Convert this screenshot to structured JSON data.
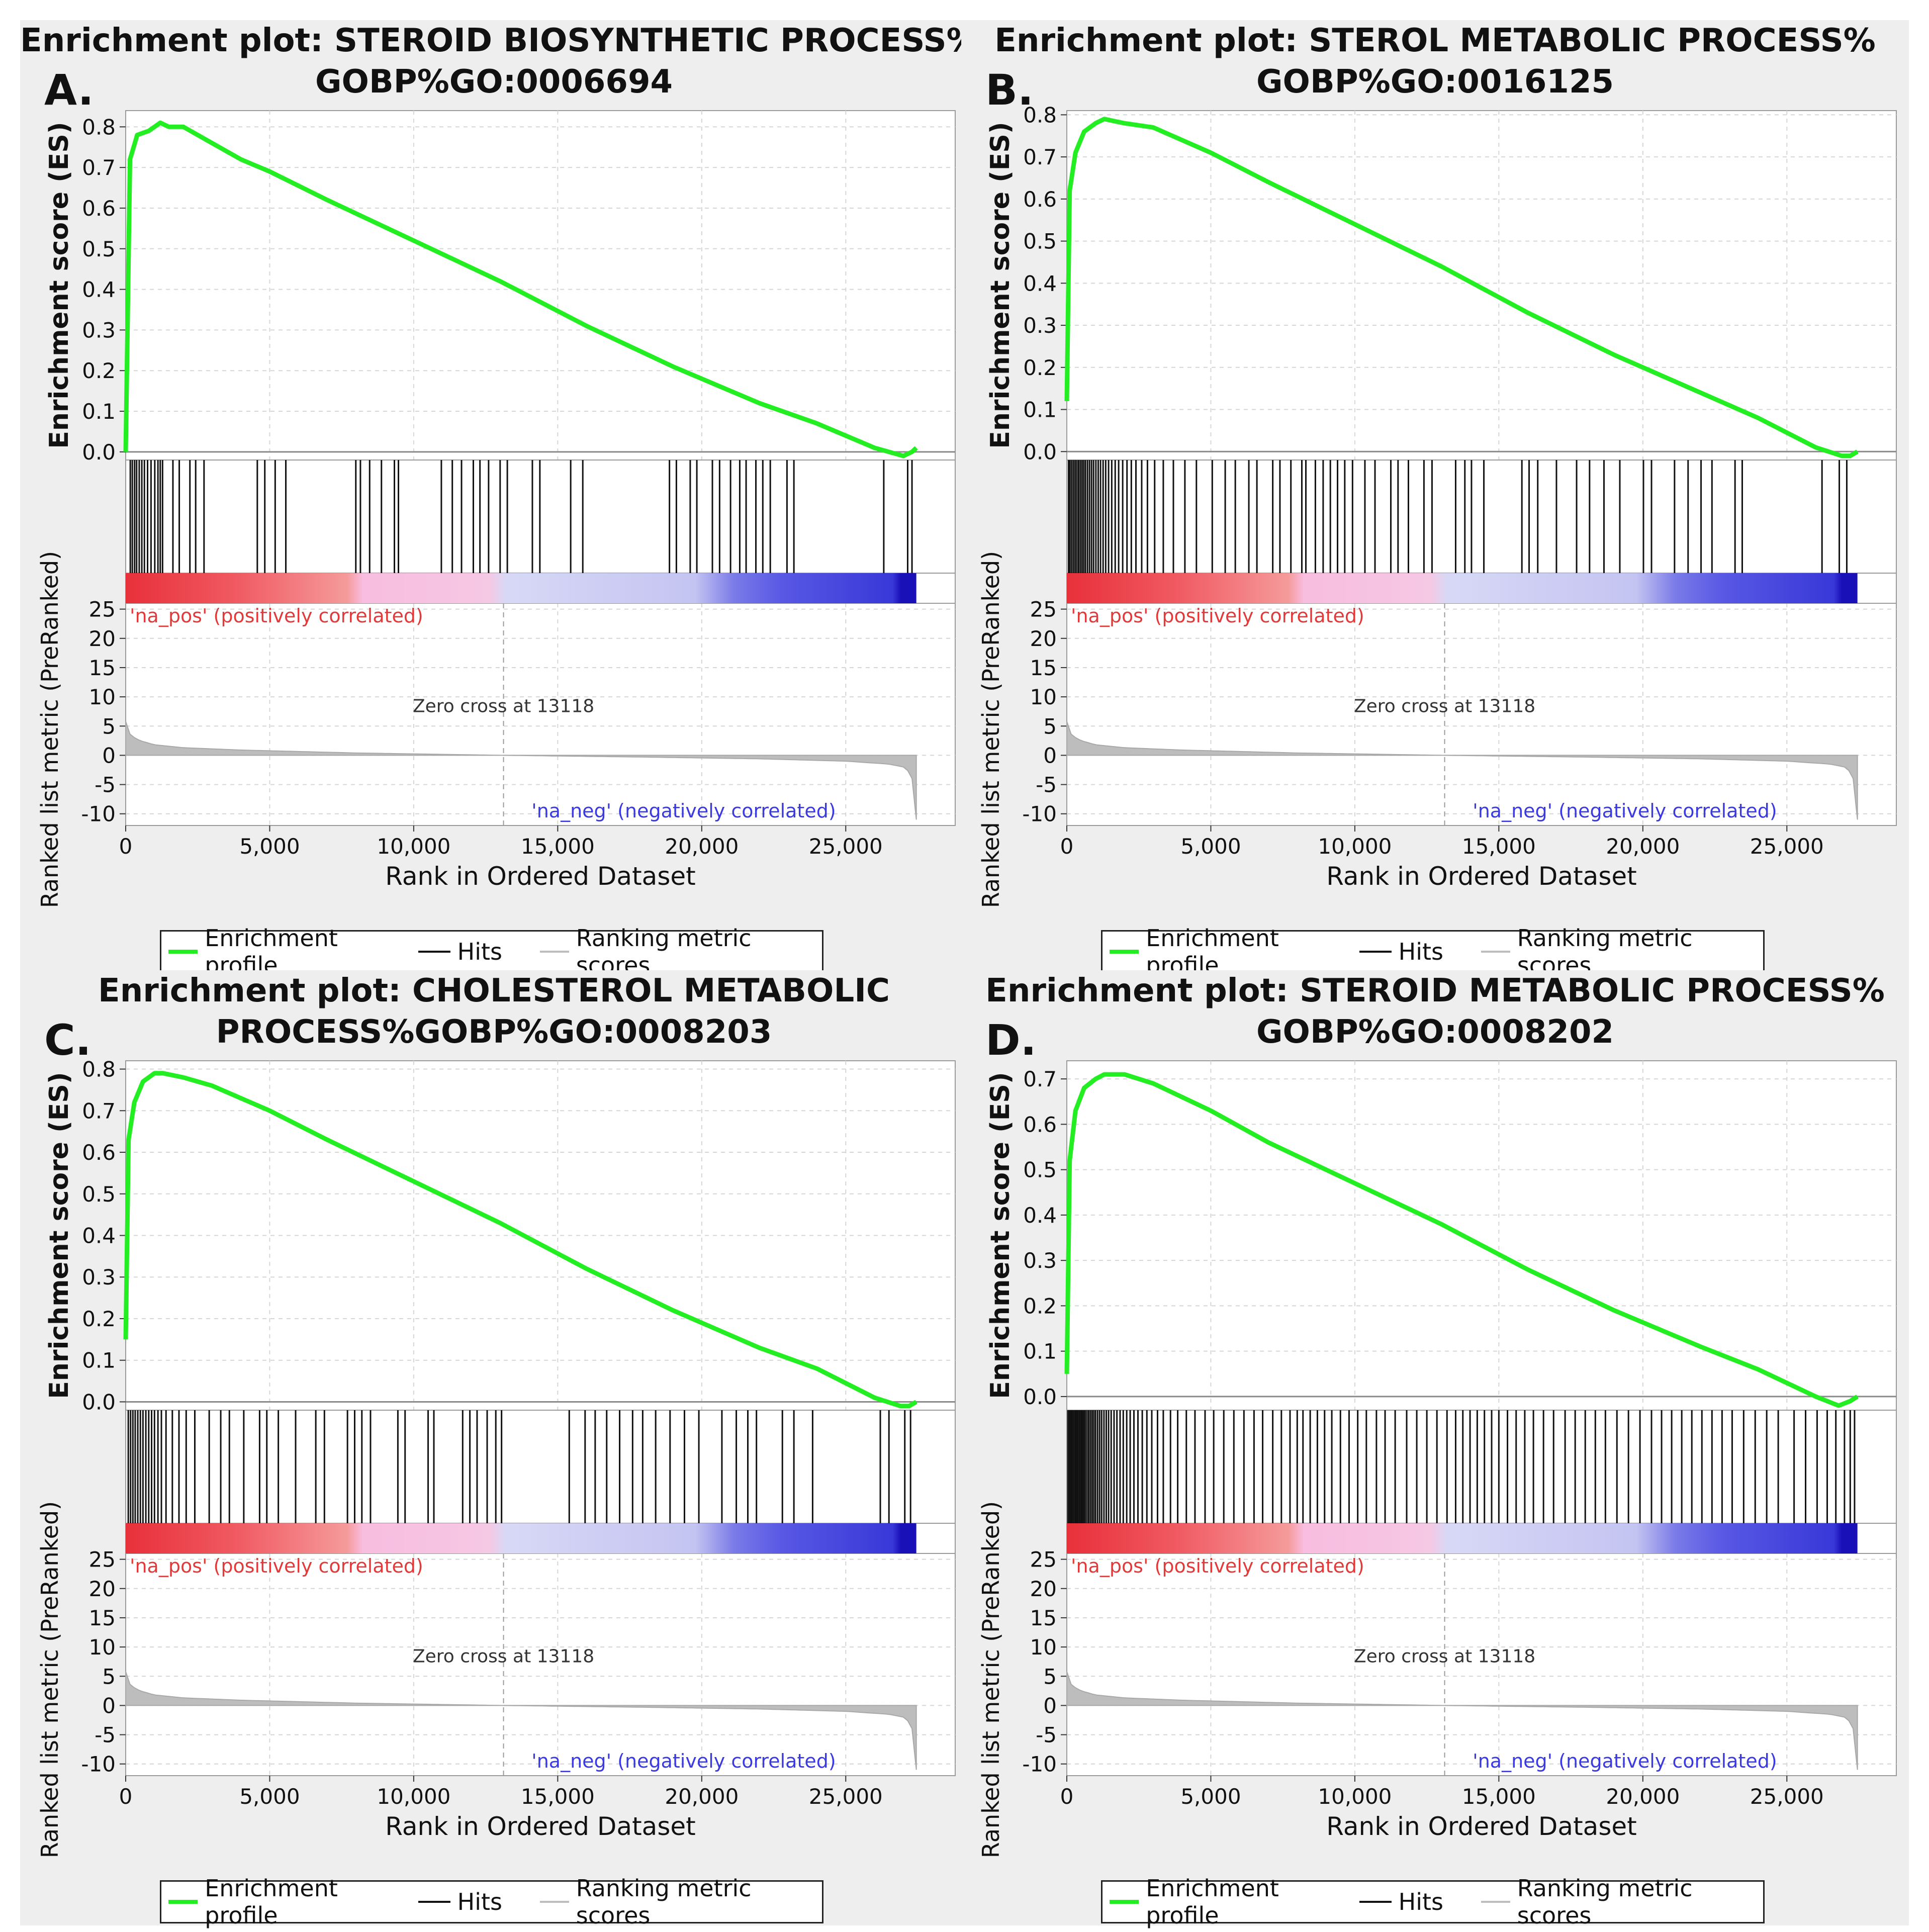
{
  "legend": {
    "profile": "Enrichment profile",
    "hits": "Hits",
    "ranking": "Ranking metric scores"
  },
  "colors": {
    "profile": "#22ee22",
    "hits": "#111111",
    "ranking": "#bdbdbd",
    "pos_label": "#e03a3a",
    "neg_label": "#3a3ae0"
  },
  "chart_data": [
    {
      "type": "line",
      "letter": "A.",
      "title_line1": "Enrichment plot: STEROID BIOSYNTHETIC PROCESS%",
      "title_line2": "GOBP%GO:0006694",
      "ylabel": "Enrichment score (ES)",
      "ylabel2": "Ranked list metric (PreRanked)",
      "xlabel": "Rank in Ordered Dataset",
      "ylim": [
        -0.02,
        0.84
      ],
      "yticks": [
        "0.8",
        "0.7",
        "0.6",
        "0.5",
        "0.4",
        "0.3",
        "0.2",
        "0.1",
        "0.0"
      ],
      "ytick_values": [
        0.8,
        0.7,
        0.6,
        0.5,
        0.4,
        0.3,
        0.2,
        0.1,
        0.0
      ],
      "xticks": [
        "0",
        "5,000",
        "10,000",
        "15,000",
        "20,000",
        "25,000"
      ],
      "xtick_values": [
        0,
        5000,
        10000,
        15000,
        20000,
        25000
      ],
      "xlim": [
        0,
        28800
      ],
      "metric_ticks": [
        "25",
        "20",
        "15",
        "10",
        "5",
        "0",
        "-5",
        "-10"
      ],
      "metric_tick_values": [
        25,
        20,
        15,
        10,
        5,
        0,
        -5,
        -10
      ],
      "metric_ylim": [
        -12,
        26
      ],
      "es_x": [
        0,
        150,
        400,
        800,
        1200,
        1500,
        2000,
        3000,
        4000,
        5000,
        7000,
        10000,
        13000,
        16000,
        19000,
        22000,
        24000,
        26000,
        27000,
        27300,
        27450
      ],
      "es_y": [
        0.0,
        0.72,
        0.78,
        0.79,
        0.81,
        0.8,
        0.8,
        0.76,
        0.72,
        0.69,
        0.62,
        0.52,
        0.42,
        0.31,
        0.21,
        0.12,
        0.07,
        0.01,
        -0.01,
        0.0,
        0.01
      ],
      "hits": [
        160,
        230,
        310,
        380,
        470,
        560,
        650,
        760,
        880,
        1010,
        1120,
        1200,
        1280,
        1640,
        1860,
        2230,
        2430,
        2720,
        4570,
        4830,
        5190,
        5560,
        7990,
        8150,
        8470,
        8880,
        9330,
        9470,
        10960,
        11340,
        11660,
        12070,
        12300,
        12600,
        13000,
        13250,
        14120,
        14380,
        15450,
        15870,
        18880,
        19120,
        19600,
        19830,
        20370,
        20620,
        21000,
        21320,
        21540,
        21880,
        22120,
        22380,
        22960,
        23200,
        26320,
        27150,
        27300
      ],
      "zero_cross_x": 13118,
      "zero_cross_label": "Zero cross at 13118",
      "pos_label": "'na_pos' (positively correlated)",
      "neg_label": "'na_neg' (negatively correlated)",
      "series_x_max": 27450,
      "metric_x": [
        0,
        60,
        200,
        500,
        1000,
        2000,
        4000,
        8000,
        13118,
        18000,
        22000,
        25000,
        26500,
        27000,
        27250,
        27380,
        27450
      ],
      "metric_y": [
        5.8,
        4.2,
        3.3,
        2.5,
        1.8,
        1.3,
        0.9,
        0.4,
        0.0,
        -0.3,
        -0.6,
        -1.0,
        -1.5,
        -2.0,
        -3.0,
        -5.5,
        -11.0
      ]
    },
    {
      "type": "line",
      "letter": "B.",
      "title_line1": "Enrichment plot: STEROL METABOLIC PROCESS%",
      "title_line2": "GOBP%GO:0016125",
      "ylabel": "Enrichment score (ES)",
      "ylabel2": "Ranked list metric (PreRanked)",
      "xlabel": "Rank in Ordered Dataset",
      "ylim": [
        -0.02,
        0.81
      ],
      "yticks": [
        "0.8",
        "0.7",
        "0.6",
        "0.5",
        "0.4",
        "0.3",
        "0.2",
        "0.1",
        "0.0"
      ],
      "ytick_values": [
        0.8,
        0.7,
        0.6,
        0.5,
        0.4,
        0.3,
        0.2,
        0.1,
        0.0
      ],
      "xticks": [
        "0",
        "5,000",
        "10,000",
        "15,000",
        "20,000",
        "25,000"
      ],
      "xtick_values": [
        0,
        5000,
        10000,
        15000,
        20000,
        25000
      ],
      "xlim": [
        0,
        28800
      ],
      "metric_ticks": [
        "25",
        "20",
        "15",
        "10",
        "5",
        "0",
        "-5",
        "-10"
      ],
      "metric_tick_values": [
        25,
        20,
        15,
        10,
        5,
        0,
        -5,
        -10
      ],
      "metric_ylim": [
        -12,
        26
      ],
      "es_x": [
        0,
        100,
        300,
        600,
        1000,
        1300,
        2000,
        3000,
        4000,
        5000,
        7000,
        10000,
        13000,
        16000,
        19000,
        22000,
        24000,
        26000,
        26900,
        27200,
        27450
      ],
      "es_y": [
        0.12,
        0.62,
        0.71,
        0.76,
        0.78,
        0.79,
        0.78,
        0.77,
        0.74,
        0.71,
        0.64,
        0.54,
        0.44,
        0.33,
        0.23,
        0.14,
        0.08,
        0.01,
        -0.01,
        -0.01,
        0.0
      ],
      "hits": [
        60,
        110,
        170,
        230,
        290,
        350,
        410,
        470,
        530,
        590,
        650,
        720,
        790,
        860,
        930,
        1010,
        1090,
        1170,
        1260,
        1350,
        1450,
        1560,
        1680,
        1800,
        1940,
        2090,
        2240,
        2400,
        2600,
        2800,
        3050,
        3350,
        3700,
        4100,
        4500,
        5050,
        5500,
        5850,
        6320,
        6600,
        7150,
        7400,
        7780,
        8160,
        8300,
        8630,
        8900,
        9150,
        9400,
        9650,
        9920,
        10350,
        10700,
        11250,
        11500,
        11860,
        12400,
        12680,
        13500,
        13820,
        14050,
        14480,
        15800,
        16050,
        16350,
        17000,
        17700,
        18150,
        18650,
        19200,
        20020,
        20300,
        21100,
        21570,
        22020,
        22400,
        23200,
        23450,
        26220,
        26820,
        27080
      ],
      "zero_cross_x": 13118,
      "zero_cross_label": "Zero cross at 13118",
      "pos_label": "'na_pos' (positively correlated)",
      "neg_label": "'na_neg' (negatively correlated)",
      "series_x_max": 27450,
      "metric_x": [
        0,
        60,
        200,
        500,
        1000,
        2000,
        4000,
        8000,
        13118,
        18000,
        22000,
        25000,
        26500,
        27000,
        27250,
        27380,
        27450
      ],
      "metric_y": [
        5.8,
        4.2,
        3.3,
        2.5,
        1.8,
        1.3,
        0.9,
        0.4,
        0.0,
        -0.3,
        -0.6,
        -1.0,
        -1.5,
        -2.0,
        -3.0,
        -5.5,
        -11.0
      ]
    },
    {
      "type": "line",
      "letter": "C.",
      "title_line1": "Enrichment plot: CHOLESTEROL METABOLIC",
      "title_line2": "PROCESS%GOBP%GO:0008203",
      "ylabel": "Enrichment score (ES)",
      "ylabel2": "Ranked list metric (PreRanked)",
      "xlabel": "Rank in Ordered Dataset",
      "ylim": [
        -0.02,
        0.82
      ],
      "yticks": [
        "0.8",
        "0.7",
        "0.6",
        "0.5",
        "0.4",
        "0.3",
        "0.2",
        "0.1",
        "0.0"
      ],
      "ytick_values": [
        0.8,
        0.7,
        0.6,
        0.5,
        0.4,
        0.3,
        0.2,
        0.1,
        0.0
      ],
      "xticks": [
        "0",
        "5,000",
        "10,000",
        "15,000",
        "20,000",
        "25,000"
      ],
      "xtick_values": [
        0,
        5000,
        10000,
        15000,
        20000,
        25000
      ],
      "xlim": [
        0,
        28800
      ],
      "metric_ticks": [
        "25",
        "20",
        "15",
        "10",
        "5",
        "0",
        "-5",
        "-10"
      ],
      "metric_tick_values": [
        25,
        20,
        15,
        10,
        5,
        0,
        -5,
        -10
      ],
      "metric_ylim": [
        -12,
        26
      ],
      "es_x": [
        0,
        100,
        300,
        600,
        1000,
        1300,
        2000,
        3000,
        4000,
        5000,
        7000,
        10000,
        13000,
        16000,
        19000,
        22000,
        24000,
        26000,
        26900,
        27200,
        27450
      ],
      "es_y": [
        0.15,
        0.63,
        0.72,
        0.77,
        0.79,
        0.79,
        0.78,
        0.76,
        0.73,
        0.7,
        0.63,
        0.53,
        0.43,
        0.32,
        0.22,
        0.13,
        0.08,
        0.01,
        -0.01,
        -0.01,
        0.0
      ],
      "hits": [
        90,
        170,
        250,
        330,
        420,
        510,
        600,
        700,
        800,
        900,
        1000,
        1120,
        1240,
        1400,
        1620,
        1850,
        2100,
        2400,
        2900,
        3300,
        3600,
        4100,
        4650,
        4900,
        5300,
        5900,
        6600,
        6900,
        7700,
        7950,
        8200,
        8500,
        9450,
        9700,
        10500,
        10700,
        11700,
        11950,
        12200,
        12550,
        12850,
        13050,
        15400,
        15950,
        16300,
        16700,
        17150,
        17600,
        17950,
        18400,
        18900,
        19400,
        19900,
        20700,
        21200,
        21600,
        21900,
        22800,
        23200,
        23850,
        26200,
        26500,
        27050,
        27250
      ],
      "zero_cross_x": 13118,
      "zero_cross_label": "Zero cross at 13118",
      "pos_label": "'na_pos' (positively correlated)",
      "neg_label": "'na_neg' (negatively correlated)",
      "series_x_max": 27450,
      "metric_x": [
        0,
        60,
        200,
        500,
        1000,
        2000,
        4000,
        8000,
        13118,
        18000,
        22000,
        25000,
        26500,
        27000,
        27250,
        27380,
        27450
      ],
      "metric_y": [
        5.8,
        4.2,
        3.3,
        2.5,
        1.8,
        1.3,
        0.9,
        0.4,
        0.0,
        -0.3,
        -0.6,
        -1.0,
        -1.5,
        -2.0,
        -3.0,
        -5.5,
        -11.0
      ]
    },
    {
      "type": "line",
      "letter": "D.",
      "title_line1": "Enrichment plot: STEROID METABOLIC PROCESS%",
      "title_line2": "GOBP%GO:0008202",
      "ylabel": "Enrichment score (ES)",
      "ylabel2": "Ranked list metric (PreRanked)",
      "xlabel": "Rank in Ordered Dataset",
      "ylim": [
        -0.03,
        0.74
      ],
      "yticks": [
        "0.7",
        "0.6",
        "0.5",
        "0.4",
        "0.3",
        "0.2",
        "0.1",
        "0.0"
      ],
      "ytick_values": [
        0.7,
        0.6,
        0.5,
        0.4,
        0.3,
        0.2,
        0.1,
        0.0
      ],
      "xticks": [
        "0",
        "5,000",
        "10,000",
        "15,000",
        "20,000",
        "25,000"
      ],
      "xtick_values": [
        0,
        5000,
        10000,
        15000,
        20000,
        25000
      ],
      "xlim": [
        0,
        28800
      ],
      "metric_ticks": [
        "25",
        "20",
        "15",
        "10",
        "5",
        "0",
        "-5",
        "-10"
      ],
      "metric_tick_values": [
        25,
        20,
        15,
        10,
        5,
        0,
        -5,
        -10
      ],
      "metric_ylim": [
        -12,
        26
      ],
      "es_x": [
        0,
        100,
        300,
        600,
        1000,
        1300,
        2000,
        3000,
        4000,
        5000,
        7000,
        10000,
        13000,
        16000,
        19000,
        22000,
        24000,
        26000,
        26800,
        27200,
        27450
      ],
      "es_y": [
        0.05,
        0.52,
        0.63,
        0.68,
        0.7,
        0.71,
        0.71,
        0.69,
        0.66,
        0.63,
        0.56,
        0.47,
        0.38,
        0.28,
        0.19,
        0.11,
        0.06,
        0.0,
        -0.02,
        -0.01,
        0.0
      ],
      "hits": [
        40,
        90,
        140,
        190,
        240,
        290,
        340,
        390,
        440,
        490,
        540,
        590,
        640,
        700,
        760,
        820,
        880,
        940,
        1000,
        1070,
        1140,
        1210,
        1290,
        1370,
        1450,
        1540,
        1640,
        1740,
        1850,
        1960,
        2080,
        2200,
        2330,
        2470,
        2620,
        2780,
        2950,
        3150,
        3350,
        3600,
        3850,
        4150,
        4450,
        4800,
        5100,
        5450,
        5800,
        6150,
        6500,
        6800,
        7150,
        7450,
        7750,
        8000,
        8200,
        8450,
        8700,
        8950,
        9200,
        9500,
        9800,
        10100,
        10400,
        10750,
        11050,
        11400,
        11800,
        12150,
        12500,
        12850,
        13200,
        13500,
        13750,
        14000,
        14250,
        14500,
        14750,
        15000,
        15300,
        15600,
        15900,
        16200,
        16550,
        16900,
        17300,
        17650,
        18000,
        18350,
        18700,
        19100,
        19500,
        19900,
        20300,
        20650,
        21000,
        21350,
        21700,
        22050,
        22400,
        22750,
        23100,
        23500,
        23900,
        24300,
        24700,
        25250,
        25650,
        26050,
        26400,
        26700,
        27000,
        27200,
        27350
      ],
      "zero_cross_x": 13118,
      "zero_cross_label": "Zero cross at 13118",
      "pos_label": "'na_pos' (positively correlated)",
      "neg_label": "'na_neg' (negatively correlated)",
      "series_x_max": 27450,
      "metric_x": [
        0,
        60,
        200,
        500,
        1000,
        2000,
        4000,
        8000,
        13118,
        18000,
        22000,
        25000,
        26500,
        27000,
        27250,
        27380,
        27450
      ],
      "metric_y": [
        5.8,
        4.2,
        3.3,
        2.5,
        1.8,
        1.3,
        0.9,
        0.4,
        0.0,
        -0.3,
        -0.6,
        -1.0,
        -1.5,
        -2.0,
        -3.0,
        -5.5,
        -11.0
      ]
    }
  ]
}
